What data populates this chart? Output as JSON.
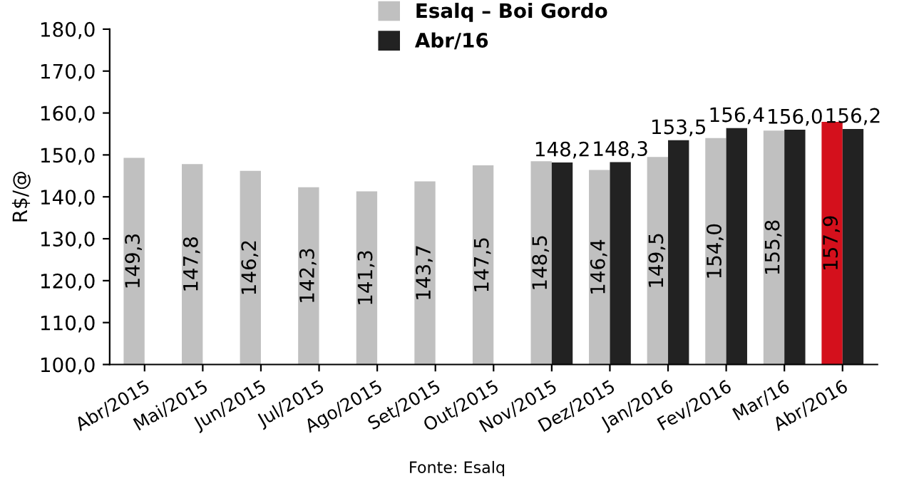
{
  "chart_data": {
    "type": "bar",
    "ylabel": "R$/@",
    "categories": [
      "Abr/2015",
      "Mai/2015",
      "Jun/2015",
      "Jul/2015",
      "Ago/2015",
      "Set/2015",
      "Out/2015",
      "Nov/2015",
      "Dez/2015",
      "Jan/2016",
      "Fev/2016",
      "Mar/16",
      "Abr/2016"
    ],
    "series": [
      {
        "name": "Esalq – Boi Gordo",
        "color": "#c0c0c0",
        "colors": [
          "#c0c0c0",
          "#c0c0c0",
          "#c0c0c0",
          "#c0c0c0",
          "#c0c0c0",
          "#c0c0c0",
          "#c0c0c0",
          "#c0c0c0",
          "#c0c0c0",
          "#c0c0c0",
          "#c0c0c0",
          "#c0c0c0",
          "#d4101c"
        ],
        "values": [
          149.3,
          147.8,
          146.2,
          142.3,
          141.3,
          143.7,
          147.5,
          148.5,
          146.4,
          149.5,
          154.0,
          155.8,
          157.9
        ],
        "value_labels": [
          "149,3",
          "147,8",
          "146,2",
          "142,3",
          "141,3",
          "143,7",
          "147,5",
          "148,5",
          "146,4",
          "149,5",
          "154,0",
          "155,8",
          "157,9"
        ]
      },
      {
        "name": "Abr/16",
        "color": "#222222",
        "values": [
          null,
          null,
          null,
          null,
          null,
          null,
          null,
          148.2,
          148.3,
          153.5,
          156.4,
          156.0,
          156.2
        ],
        "value_labels": [
          null,
          null,
          null,
          null,
          null,
          null,
          null,
          "148,2",
          "148,3",
          "153,5",
          "156,4",
          "156,0",
          "156,2"
        ]
      }
    ],
    "ylim": [
      100,
      180
    ],
    "yticks": [
      {
        "value": 100,
        "label": "100,0"
      },
      {
        "value": 110,
        "label": "110,0"
      },
      {
        "value": 120,
        "label": "120,0"
      },
      {
        "value": 130,
        "label": "130,0"
      },
      {
        "value": 140,
        "label": "140,0"
      },
      {
        "value": 150,
        "label": "150,0"
      },
      {
        "value": 160,
        "label": "160,0"
      },
      {
        "value": 170,
        "label": "170,0"
      },
      {
        "value": 180,
        "label": "180,0"
      }
    ],
    "legend": "top",
    "grid": false,
    "annotations": [
      "Fonte: Esalq"
    ]
  }
}
